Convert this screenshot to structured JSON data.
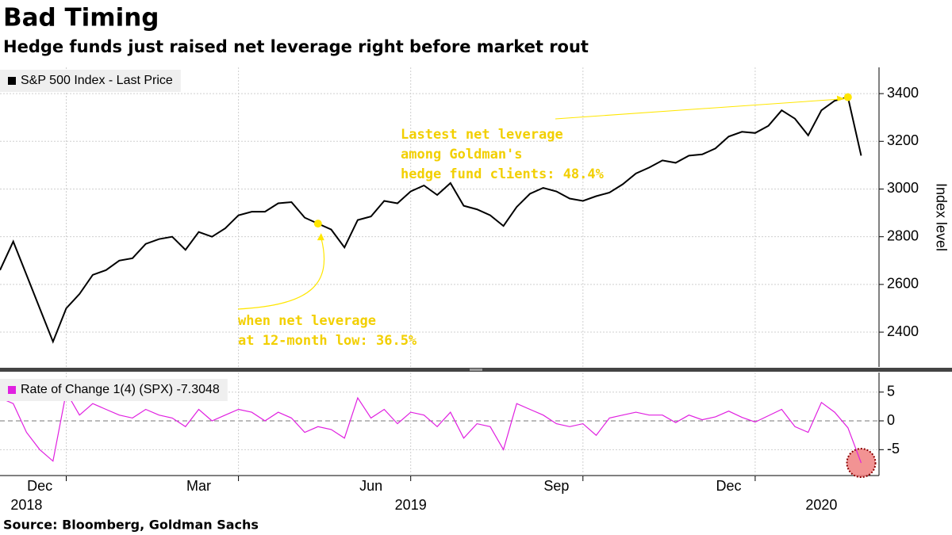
{
  "source": "Source: Bloomberg, Goldman Sachs",
  "chart_data": [
    {
      "type": "line",
      "title": "Bad Timing",
      "subtitle": "Hedge funds just raised net leverage right before market rout",
      "y_label": "Index level",
      "series": [
        {
          "name": "S&P 500 Index - Last Price",
          "color": "#000000",
          "values": [
            2660,
            2780,
            2640,
            2500,
            2360,
            2500,
            2560,
            2640,
            2660,
            2700,
            2710,
            2770,
            2790,
            2800,
            2745,
            2820,
            2800,
            2835,
            2890,
            2905,
            2905,
            2940,
            2945,
            2880,
            2855,
            2830,
            2755,
            2870,
            2885,
            2950,
            2940,
            2990,
            3015,
            2975,
            3025,
            2930,
            2915,
            2890,
            2845,
            2925,
            2980,
            3005,
            2990,
            2960,
            2950,
            2970,
            2985,
            3020,
            3065,
            3090,
            3120,
            3110,
            3140,
            3145,
            3170,
            3220,
            3240,
            3235,
            3265,
            3330,
            3295,
            3225,
            3330,
            3370,
            3385,
            3140
          ]
        }
      ],
      "ylim": [
        2254,
        3510
      ],
      "yticks": [
        2400,
        2600,
        2800,
        3000,
        3200,
        3400
      ],
      "grid": true,
      "annotations": [
        {
          "text": [
            "Lastest net leverage",
            "among Goldman's",
            "hedge fund clients: 48.4%"
          ],
          "at": 64,
          "color": "#ffe600"
        },
        {
          "text": [
            "when net leverage",
            "at 12-month low: 36.5%"
          ],
          "at": 24,
          "color": "#ffe600"
        }
      ]
    },
    {
      "type": "line",
      "series": [
        {
          "name": "Rate of Change 1(4) (SPX)",
          "color": "#e020e0",
          "values": [
            4,
            3,
            -2,
            -5,
            -7,
            5,
            1,
            3,
            2,
            1,
            0.5,
            2,
            1,
            0.5,
            -1,
            2,
            0,
            1,
            2,
            1.5,
            0,
            1.5,
            0.5,
            -2,
            -1,
            -1.5,
            -3,
            4,
            0.5,
            2,
            -0.5,
            1.5,
            1,
            -1,
            1.5,
            -3,
            -0.5,
            -1,
            -5,
            3,
            2,
            1,
            -0.5,
            -1,
            -0.5,
            -2.5,
            0.5,
            1,
            1.5,
            1,
            1,
            -0.3,
            1,
            0.2,
            0.7,
            1.7,
            0.6,
            -0.2,
            0.9,
            2,
            -1,
            -2,
            3.2,
            1.5,
            -1.2,
            -7.3048
          ]
        }
      ],
      "ylim": [
        -9.5,
        8.4
      ],
      "yticks": [
        -5,
        0,
        5
      ],
      "categories": [
        null,
        null,
        null,
        "Dec",
        null,
        null,
        null,
        null,
        null,
        null,
        null,
        null,
        null,
        null,
        null,
        "Mar",
        null,
        null,
        null,
        null,
        null,
        null,
        null,
        null,
        null,
        null,
        null,
        null,
        "Jun",
        null,
        null,
        null,
        null,
        null,
        null,
        null,
        null,
        null,
        null,
        null,
        null,
        null,
        "Sep",
        null,
        null,
        null,
        null,
        null,
        null,
        null,
        null,
        null,
        null,
        null,
        null,
        "Dec",
        null,
        null,
        null,
        null,
        null,
        null,
        null,
        null,
        null,
        null
      ],
      "year_categories": [
        null,
        null,
        "2018",
        null,
        null,
        null,
        null,
        null,
        null,
        null,
        null,
        null,
        null,
        null,
        null,
        null,
        null,
        null,
        null,
        null,
        null,
        null,
        null,
        null,
        null,
        null,
        null,
        null,
        null,
        null,
        null,
        "2019",
        null,
        null,
        null,
        null,
        null,
        null,
        null,
        null,
        null,
        null,
        null,
        null,
        null,
        null,
        null,
        null,
        null,
        null,
        null,
        null,
        null,
        null,
        null,
        null,
        null,
        null,
        null,
        null,
        null,
        null,
        "2020",
        null,
        null,
        null
      ],
      "xticks": [
        5,
        18,
        31,
        44,
        57
      ],
      "grid": true,
      "highlight_last": "#f08080"
    }
  ]
}
